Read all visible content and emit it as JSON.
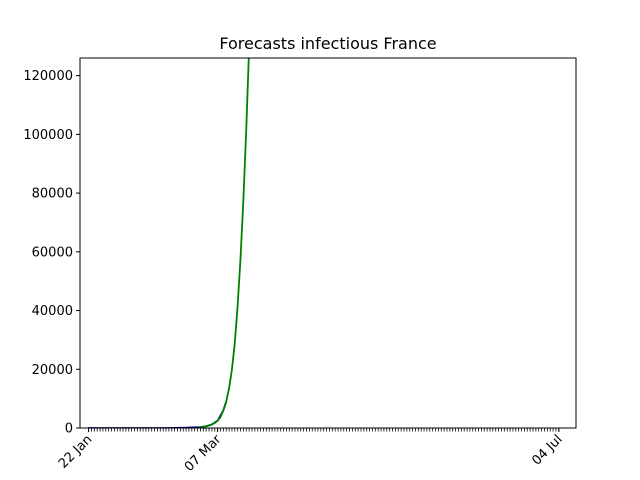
{
  "chart_data": {
    "type": "line",
    "title": "Forecasts infectious France",
    "xlabel": "",
    "ylabel": "",
    "x_range": [
      "2020-01-22",
      "2020-07-04"
    ],
    "xlim": [
      "2020-01-19",
      "2020-07-10"
    ],
    "ylim": [
      0,
      126000
    ],
    "x_tick_labels": [
      {
        "date": "2020-01-22",
        "label": "22 Jan"
      },
      {
        "date": "2020-03-07",
        "label": "07 Mar"
      },
      {
        "date": "2020-07-04",
        "label": "04 Jul"
      }
    ],
    "minor_ticks": "daily",
    "y_ticks": [
      0,
      20000,
      40000,
      60000,
      80000,
      100000,
      120000
    ],
    "y_tick_labels": [
      "0",
      "20000",
      "40000",
      "60000",
      "80000",
      "100000",
      "120000"
    ],
    "grid": false,
    "legend": false,
    "series": [
      {
        "color": "#00008b",
        "x": [
          "2020-01-22",
          "2020-02-05",
          "2020-02-19",
          "2020-02-25",
          "2020-03-01",
          "2020-03-03",
          "2020-03-05",
          "2020-03-07",
          "2020-03-09",
          "2020-03-10"
        ],
        "y": [
          0,
          0,
          10,
          100,
          300,
          600,
          1200,
          2500,
          6000,
          9000
        ]
      },
      {
        "color": "#008000",
        "x": [
          "2020-03-01",
          "2020-03-02",
          "2020-03-03",
          "2020-03-04",
          "2020-03-05",
          "2020-03-06",
          "2020-03-07",
          "2020-03-08",
          "2020-03-09",
          "2020-03-10",
          "2020-03-11",
          "2020-03-12",
          "2020-03-13",
          "2020-03-14",
          "2020-03-15",
          "2020-03-16",
          "2020-03-17",
          "2020-03-18"
        ],
        "y": [
          300,
          420,
          600,
          850,
          1200,
          1700,
          2500,
          3700,
          6000,
          9000,
          13500,
          20000,
          29000,
          42000,
          58000,
          78000,
          102000,
          130000
        ]
      }
    ]
  }
}
